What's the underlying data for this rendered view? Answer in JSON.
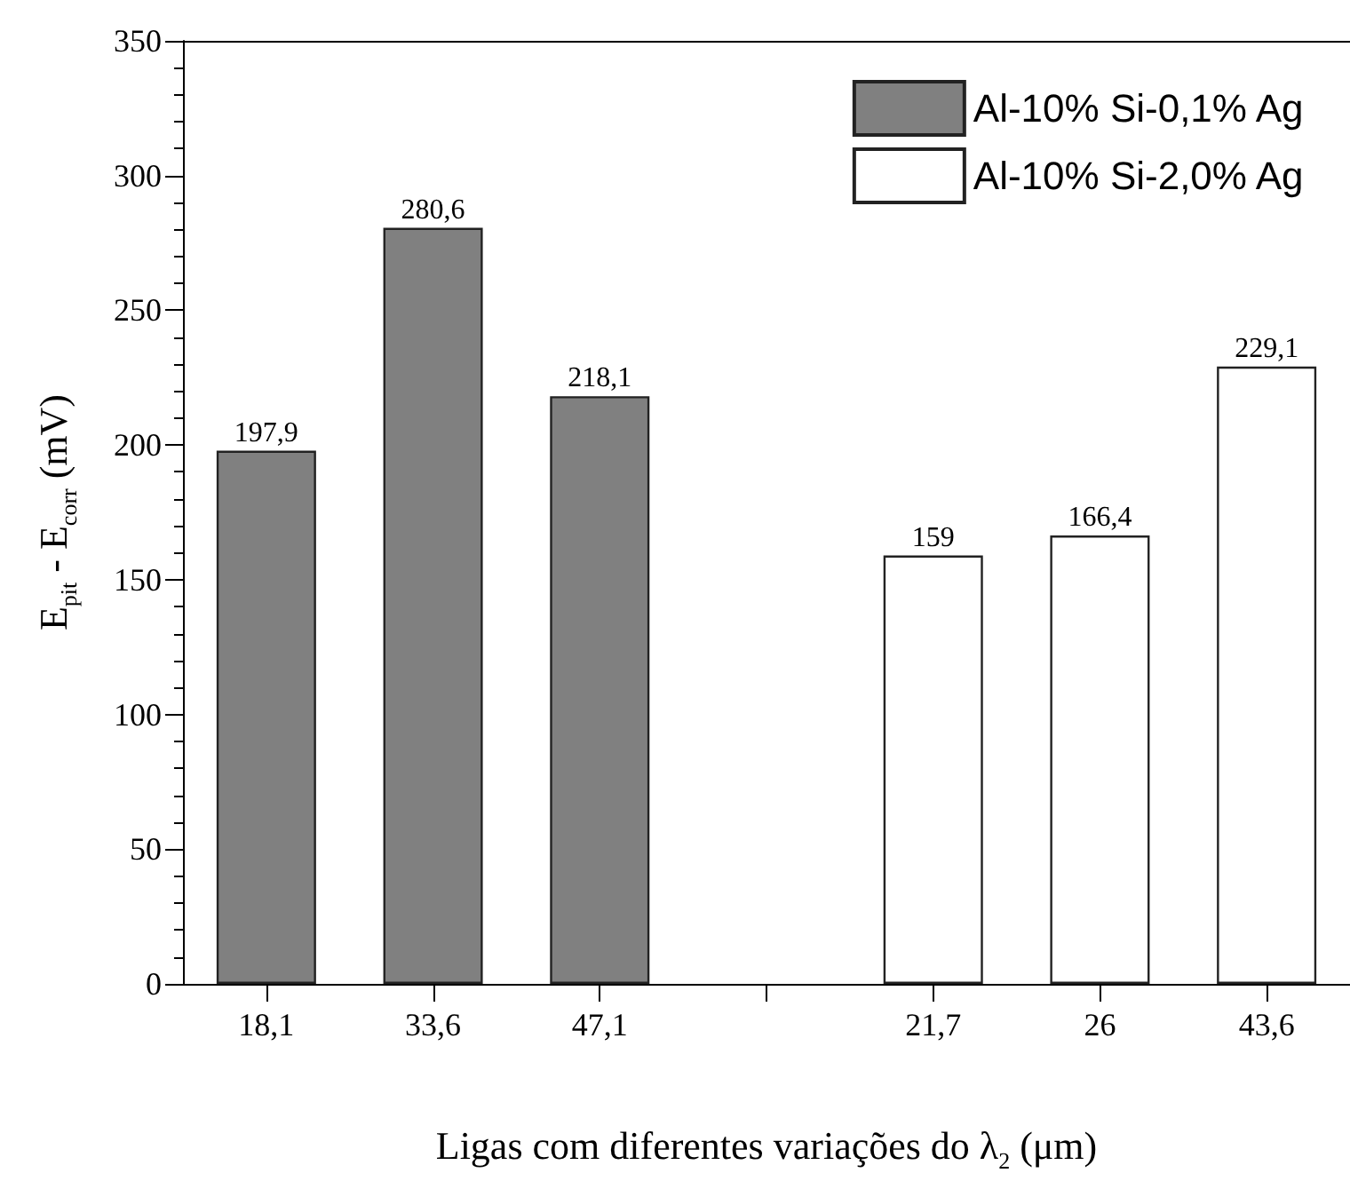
{
  "chart_data": {
    "type": "bar",
    "xlabel": "Ligas com diferentes variações do λ$_{2}$ (μm)",
    "ylabel": "E$_{pit}$ - E$_{corr}$ (mV)",
    "categories": [
      "18,1",
      "33,6",
      "47,1",
      null,
      "21,7",
      "26",
      "43,6"
    ],
    "series": [
      {
        "name": "Al-10% Si-0,1% Ag",
        "color": "#808080",
        "values": [
          197.9,
          280.6,
          218.1,
          null,
          null,
          null,
          null
        ],
        "value_labels": [
          "197,9",
          "280,6",
          "218,1",
          null,
          null,
          null,
          null
        ]
      },
      {
        "name": "Al-10% Si-2,0% Ag",
        "color": "#ffffff",
        "values": [
          null,
          null,
          null,
          null,
          159,
          166.4,
          229.1
        ],
        "value_labels": [
          null,
          null,
          null,
          null,
          "159",
          "166,4",
          "229,1"
        ]
      }
    ],
    "ylim": [
      0,
      350
    ],
    "yticks": [
      0,
      50,
      100,
      150,
      200,
      250,
      300,
      350
    ],
    "grid": false,
    "legend": "top right"
  }
}
